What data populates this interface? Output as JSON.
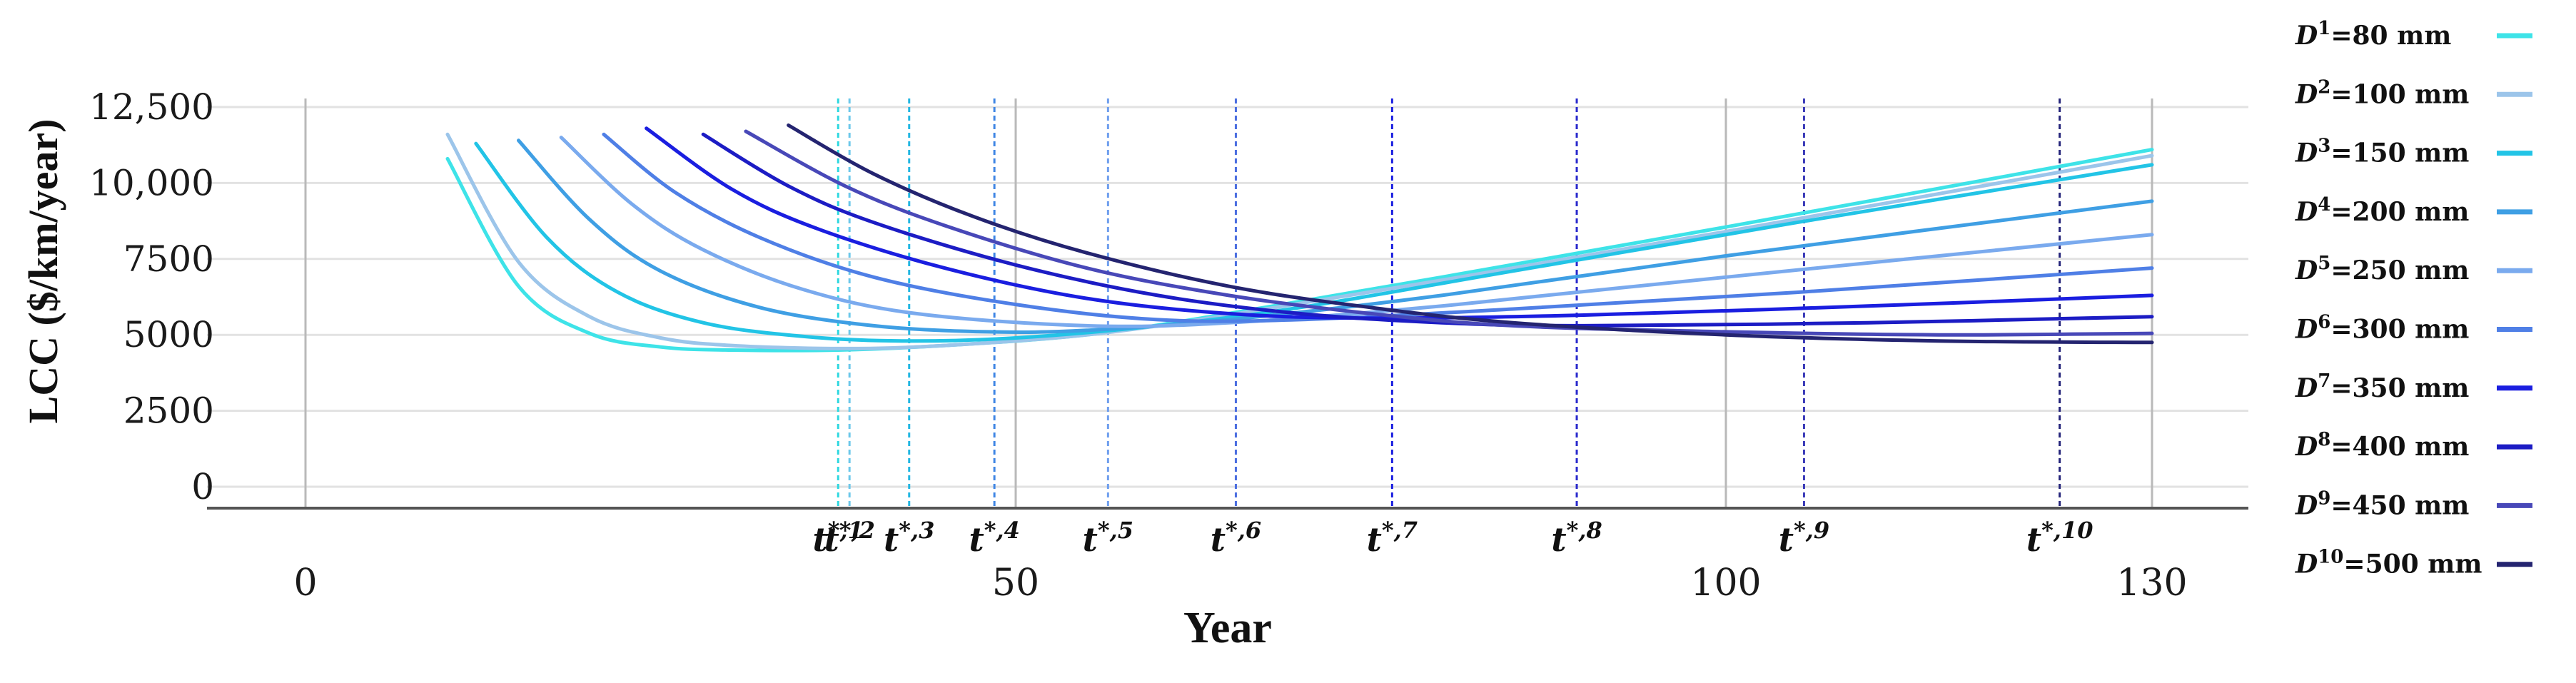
{
  "chart_data": {
    "type": "line",
    "title": "",
    "xlabel": "Year",
    "ylabel": "LCC ($/km/year)",
    "xlim": [
      0,
      130
    ],
    "ylim": [
      0,
      12500
    ],
    "x_ticks": [
      {
        "value": 0,
        "label": "0"
      },
      {
        "value": 50,
        "label": "50"
      },
      {
        "value": 100,
        "label": "100"
      },
      {
        "value": 130,
        "label": "130"
      }
    ],
    "y_ticks": [
      {
        "value": 0,
        "label": "0"
      },
      {
        "value": 2500,
        "label": "2500"
      },
      {
        "value": 5000,
        "label": "5000"
      },
      {
        "value": 7500,
        "label": "7500"
      },
      {
        "value": 10000,
        "label": "10,000"
      },
      {
        "value": 12500,
        "label": "12,500"
      }
    ],
    "gridlines_x": [
      0,
      50,
      100,
      130
    ],
    "gridlines_y": [
      0,
      2500,
      5000,
      7500,
      10000,
      12500
    ],
    "legend_position": "right",
    "series": [
      {
        "name": "=80 mm",
        "sup": "1",
        "color": "#3ee3e8",
        "start_year": 10,
        "points": [
          [
            10,
            10800
          ],
          [
            15,
            6600
          ],
          [
            20,
            5050
          ],
          [
            25,
            4600
          ],
          [
            30,
            4500
          ],
          [
            37.5,
            4500
          ],
          [
            45,
            4650
          ],
          [
            55,
            5000
          ],
          [
            65,
            5700
          ],
          [
            80,
            6900
          ],
          [
            100,
            8550
          ],
          [
            130,
            11100
          ]
        ]
      },
      {
        "name": "=100 mm",
        "sup": "2",
        "color": "#9cc5ea",
        "start_year": 10,
        "points": [
          [
            10,
            11600
          ],
          [
            15,
            7400
          ],
          [
            20,
            5600
          ],
          [
            25,
            4900
          ],
          [
            30,
            4650
          ],
          [
            38,
            4550
          ],
          [
            45,
            4650
          ],
          [
            55,
            5000
          ],
          [
            65,
            5650
          ],
          [
            80,
            6800
          ],
          [
            100,
            8400
          ],
          [
            130,
            10900
          ]
        ]
      },
      {
        "name": "=150 mm",
        "sup": "3",
        "color": "#22c4e6",
        "start_year": 12,
        "points": [
          [
            12,
            11300
          ],
          [
            17,
            8200
          ],
          [
            22,
            6400
          ],
          [
            28,
            5400
          ],
          [
            35,
            4950
          ],
          [
            42,
            4800
          ],
          [
            50,
            4900
          ],
          [
            60,
            5300
          ],
          [
            70,
            5900
          ],
          [
            85,
            7100
          ],
          [
            105,
            8700
          ],
          [
            130,
            10600
          ]
        ]
      },
      {
        "name": "=200 mm",
        "sup": "4",
        "color": "#3f9fe4",
        "start_year": 15,
        "points": [
          [
            15,
            11400
          ],
          [
            20,
            8800
          ],
          [
            25,
            7100
          ],
          [
            32,
            5900
          ],
          [
            40,
            5300
          ],
          [
            48,
            5100
          ],
          [
            55,
            5150
          ],
          [
            65,
            5500
          ],
          [
            80,
            6300
          ],
          [
            100,
            7600
          ],
          [
            130,
            9400
          ]
        ]
      },
      {
        "name": "=250 mm",
        "sup": "5",
        "color": "#7aaaee",
        "start_year": 18,
        "points": [
          [
            18,
            11500
          ],
          [
            23,
            9300
          ],
          [
            28,
            7800
          ],
          [
            35,
            6500
          ],
          [
            43,
            5700
          ],
          [
            55,
            5300
          ],
          [
            65,
            5400
          ],
          [
            80,
            5950
          ],
          [
            100,
            6900
          ],
          [
            130,
            8300
          ]
        ]
      },
      {
        "name": "=300 mm",
        "sup": "6",
        "color": "#4f7fe6",
        "start_year": 21,
        "points": [
          [
            21,
            11600
          ],
          [
            26,
            9700
          ],
          [
            32,
            8200
          ],
          [
            40,
            6900
          ],
          [
            50,
            6000
          ],
          [
            60,
            5500
          ],
          [
            70,
            5500
          ],
          [
            85,
            5850
          ],
          [
            105,
            6400
          ],
          [
            130,
            7200
          ]
        ]
      },
      {
        "name": "=350 mm",
        "sup": "7",
        "color": "#1a1ee0",
        "start_year": 24,
        "points": [
          [
            24,
            11800
          ],
          [
            30,
            9800
          ],
          [
            36,
            8500
          ],
          [
            45,
            7200
          ],
          [
            55,
            6200
          ],
          [
            65,
            5700
          ],
          [
            75,
            5550
          ],
          [
            90,
            5650
          ],
          [
            110,
            5950
          ],
          [
            130,
            6300
          ]
        ]
      },
      {
        "name": "=400 mm",
        "sup": "8",
        "color": "#1c1cc4",
        "start_year": 28,
        "points": [
          [
            28,
            11600
          ],
          [
            34,
            9900
          ],
          [
            40,
            8700
          ],
          [
            50,
            7300
          ],
          [
            60,
            6300
          ],
          [
            70,
            5700
          ],
          [
            80,
            5400
          ],
          [
            90,
            5300
          ],
          [
            110,
            5400
          ],
          [
            130,
            5600
          ]
        ]
      },
      {
        "name": "=450 mm",
        "sup": "9",
        "color": "#4848b8",
        "start_year": 31,
        "points": [
          [
            31,
            11700
          ],
          [
            38,
            9900
          ],
          [
            45,
            8600
          ],
          [
            55,
            7200
          ],
          [
            65,
            6300
          ],
          [
            75,
            5700
          ],
          [
            85,
            5300
          ],
          [
            100,
            5100
          ],
          [
            115,
            5000
          ],
          [
            130,
            5050
          ]
        ]
      },
      {
        "name": "=500 mm",
        "sup": "10",
        "color": "#242470",
        "start_year": 34,
        "points": [
          [
            34,
            11900
          ],
          [
            40,
            10300
          ],
          [
            47,
            8900
          ],
          [
            55,
            7700
          ],
          [
            65,
            6600
          ],
          [
            75,
            5900
          ],
          [
            85,
            5400
          ],
          [
            100,
            5000
          ],
          [
            115,
            4800
          ],
          [
            130,
            4750
          ]
        ]
      }
    ],
    "optimal_years": [
      {
        "label": "t",
        "sup": "*,1",
        "x": 37.5,
        "color": "#2fd8e0"
      },
      {
        "label": "t",
        "sup": "*,2",
        "x": 38.3,
        "color": "#6cc8ea"
      },
      {
        "label": "t",
        "sup": "*,3",
        "x": 42.5,
        "color": "#22b6e2"
      },
      {
        "label": "t",
        "sup": "*,4",
        "x": 48.5,
        "color": "#3f86e4"
      },
      {
        "label": "t",
        "sup": "*,5",
        "x": 56.5,
        "color": "#6e9eee"
      },
      {
        "label": "t",
        "sup": "*,6",
        "x": 65.5,
        "color": "#4a6de0"
      },
      {
        "label": "t",
        "sup": "*,7",
        "x": 76.5,
        "color": "#1a1ee0"
      },
      {
        "label": "t",
        "sup": "*,8",
        "x": 89.5,
        "color": "#2a2acc"
      },
      {
        "label": "t",
        "sup": "*,9",
        "x": 105.5,
        "color": "#3a3ab8"
      },
      {
        "label": "t",
        "sup": "*,10",
        "x": 123.5,
        "color": "#24247a"
      }
    ],
    "legend_symbol": "D"
  }
}
